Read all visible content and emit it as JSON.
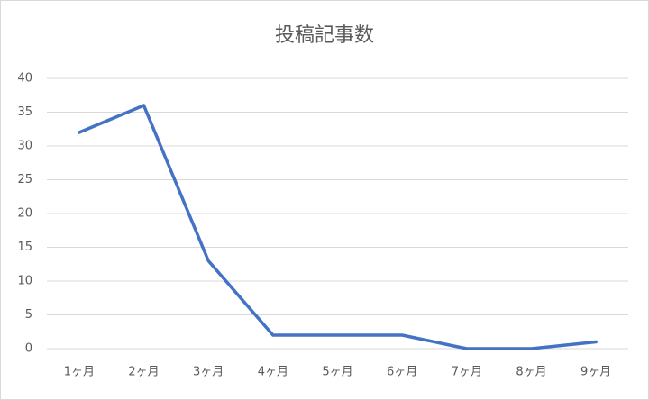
{
  "chart_data": {
    "type": "line",
    "title": "投稿記事数",
    "categories": [
      "1ヶ月",
      "2ヶ月",
      "3ヶ月",
      "4ヶ月",
      "5ヶ月",
      "6ヶ月",
      "7ヶ月",
      "8ヶ月",
      "9ヶ月"
    ],
    "values": [
      32,
      36,
      13,
      2,
      2,
      2,
      0,
      0,
      1
    ],
    "color": "#4472c4",
    "ylim": [
      0,
      40
    ],
    "yticks": [
      0,
      5,
      10,
      15,
      20,
      25,
      30,
      35,
      40
    ],
    "grid": true
  }
}
